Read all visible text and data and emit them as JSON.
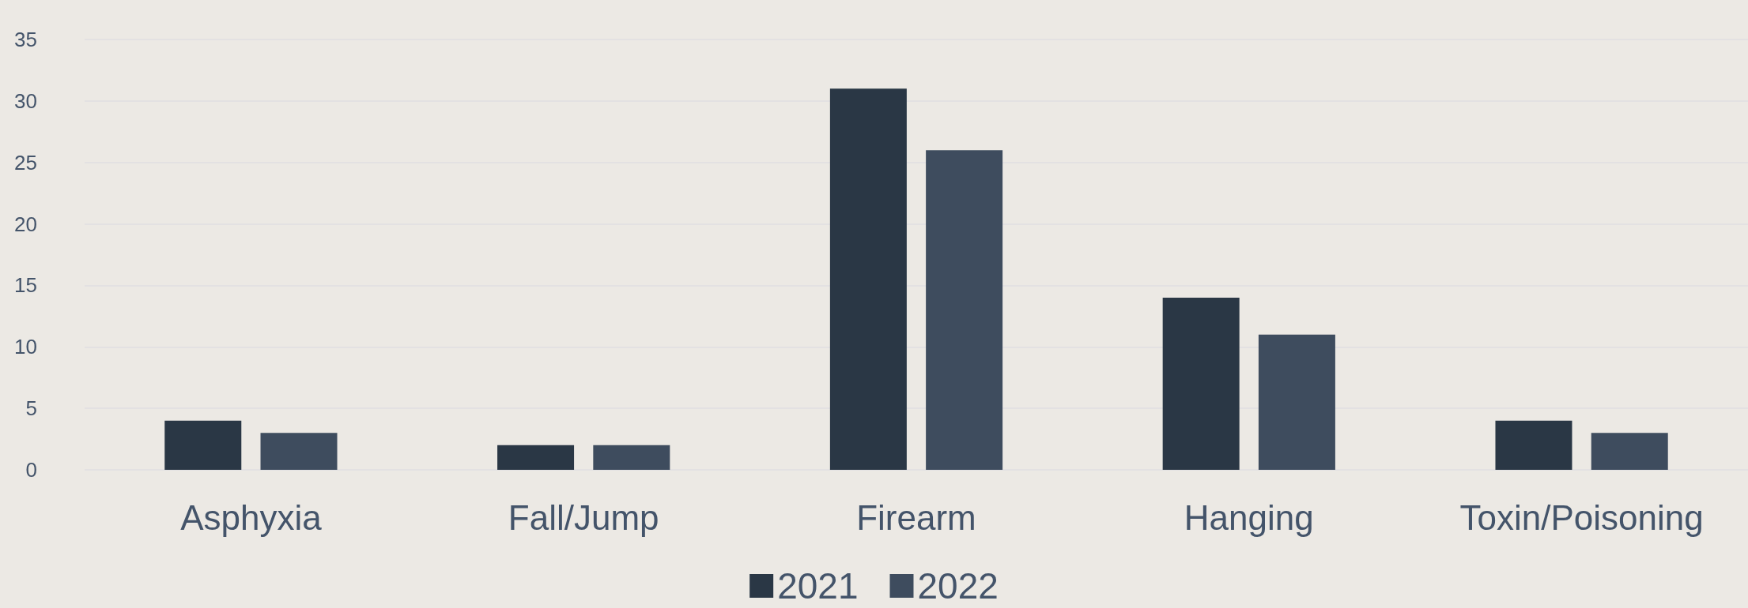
{
  "chart_data": {
    "type": "bar",
    "categories": [
      "Asphyxia",
      "Fall/Jump",
      "Firearm",
      "Hanging",
      "Toxin/Poisoning"
    ],
    "series": [
      {
        "name": "2021",
        "color": "#2a3745",
        "values": [
          4,
          2,
          31,
          14,
          4
        ]
      },
      {
        "name": "2022",
        "color": "#3e4c5e",
        "values": [
          3,
          2,
          26,
          11,
          3
        ]
      }
    ],
    "ylim": [
      0,
      35
    ],
    "yticks": [
      0,
      5,
      10,
      15,
      20,
      25,
      30,
      35
    ],
    "grid": "y",
    "legend": "bottom"
  }
}
